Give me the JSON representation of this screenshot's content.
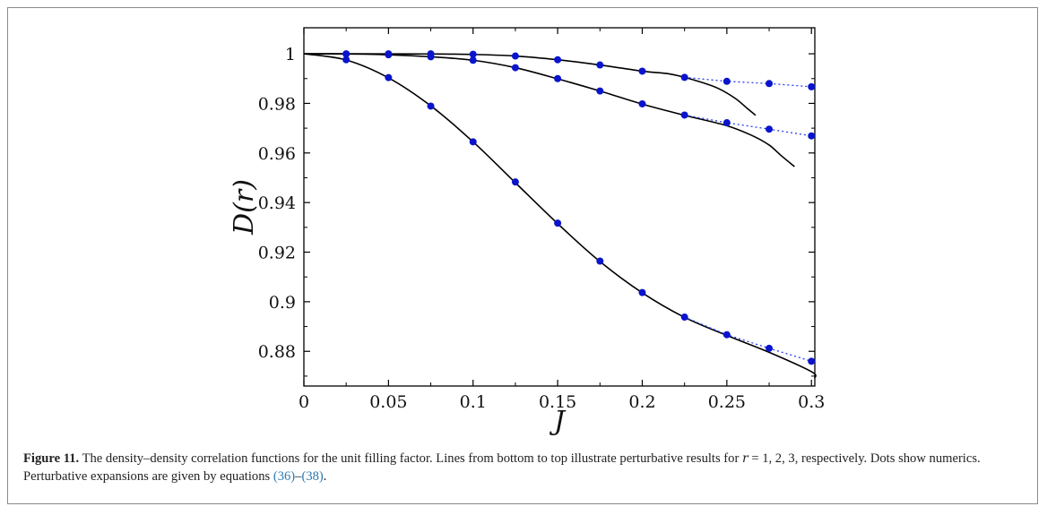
{
  "figure": {
    "label": "Figure 11.",
    "caption_parts": [
      "The density–density correlation functions for the unit filling factor. Lines from bottom to top illustrate perturbative results for ",
      "r",
      " = 1, 2, 3, respectively. Dots show numerics. Perturbative expansions are given by equations ",
      "(36)",
      "–",
      "(38)",
      "."
    ]
  },
  "chart_data": {
    "type": "line",
    "xlabel": "J",
    "ylabel": "D(r)",
    "xlim": [
      0,
      0.302
    ],
    "ylim": [
      0.866,
      1.0105
    ],
    "xticks": [
      0,
      0.05,
      0.1,
      0.15,
      0.2,
      0.25,
      0.3
    ],
    "xtick_labels": [
      "0",
      "0.05",
      "0.1",
      "0.15",
      "0.2",
      "0.25",
      "0.3"
    ],
    "yticks": [
      0.88,
      0.9,
      0.92,
      0.94,
      0.96,
      0.98,
      1.0
    ],
    "ytick_labels": [
      "0.88",
      "0.9",
      "0.92",
      "0.94",
      "0.96",
      "0.98",
      "1"
    ],
    "colors": {
      "line": "#000000",
      "dots": "#0a14cc",
      "dotted": "#2a3cf0"
    },
    "series": [
      {
        "kind": "perturbative",
        "x": [
          0,
          0.025,
          0.05,
          0.075,
          0.1,
          0.125,
          0.15,
          0.175,
          0.2,
          0.225,
          0.25,
          0.275,
          0.3,
          0.302
        ],
        "y": [
          1.0,
          0.9975,
          0.9903,
          0.979,
          0.9645,
          0.948,
          0.9315,
          0.9162,
          0.9036,
          0.8937,
          0.8864,
          0.8796,
          0.8718,
          0.8692
        ]
      },
      {
        "kind": "perturbative",
        "x": [
          0,
          0.025,
          0.05,
          0.075,
          0.1,
          0.125,
          0.15,
          0.175,
          0.2,
          0.225,
          0.25,
          0.265,
          0.275,
          0.282,
          0.29
        ],
        "y": [
          1.0,
          0.99995,
          0.9996,
          0.9988,
          0.9974,
          0.9944,
          0.9899,
          0.985,
          0.9797,
          0.9752,
          0.971,
          0.967,
          0.9632,
          0.959,
          0.9545
        ]
      },
      {
        "kind": "perturbative",
        "x": [
          0,
          0.025,
          0.05,
          0.075,
          0.1,
          0.125,
          0.15,
          0.175,
          0.2,
          0.215,
          0.225,
          0.235,
          0.245,
          0.255,
          0.262,
          0.267
        ],
        "y": [
          1.0,
          1.0,
          0.99998,
          0.99993,
          0.99975,
          0.9991,
          0.9976,
          0.9955,
          0.993,
          0.992,
          0.9905,
          0.9885,
          0.986,
          0.982,
          0.978,
          0.9752
        ]
      },
      {
        "kind": "numerics",
        "x": [
          0.025,
          0.05,
          0.075,
          0.1,
          0.125,
          0.15,
          0.175,
          0.2,
          0.225,
          0.25,
          0.275,
          0.3
        ],
        "y": [
          0.9976,
          0.9904,
          0.9789,
          0.9645,
          0.9483,
          0.9317,
          0.9164,
          0.9037,
          0.8938,
          0.8867,
          0.8812,
          0.876
        ],
        "dotted_from": 8
      },
      {
        "kind": "numerics",
        "x": [
          0.025,
          0.05,
          0.075,
          0.1,
          0.125,
          0.15,
          0.175,
          0.2,
          0.225,
          0.25,
          0.275,
          0.3
        ],
        "y": [
          0.9999,
          0.9996,
          0.9988,
          0.9974,
          0.9944,
          0.99,
          0.985,
          0.9798,
          0.9753,
          0.9722,
          0.9696,
          0.9669
        ],
        "dotted_from": 8
      },
      {
        "kind": "numerics",
        "x": [
          0.025,
          0.05,
          0.075,
          0.1,
          0.125,
          0.15,
          0.175,
          0.2,
          0.225,
          0.25,
          0.275,
          0.3
        ],
        "y": [
          1.0,
          1.0,
          1.0,
          0.9998,
          0.9991,
          0.9976,
          0.9955,
          0.993,
          0.9905,
          0.9889,
          0.988,
          0.9867
        ],
        "dotted_from": 8
      }
    ]
  }
}
